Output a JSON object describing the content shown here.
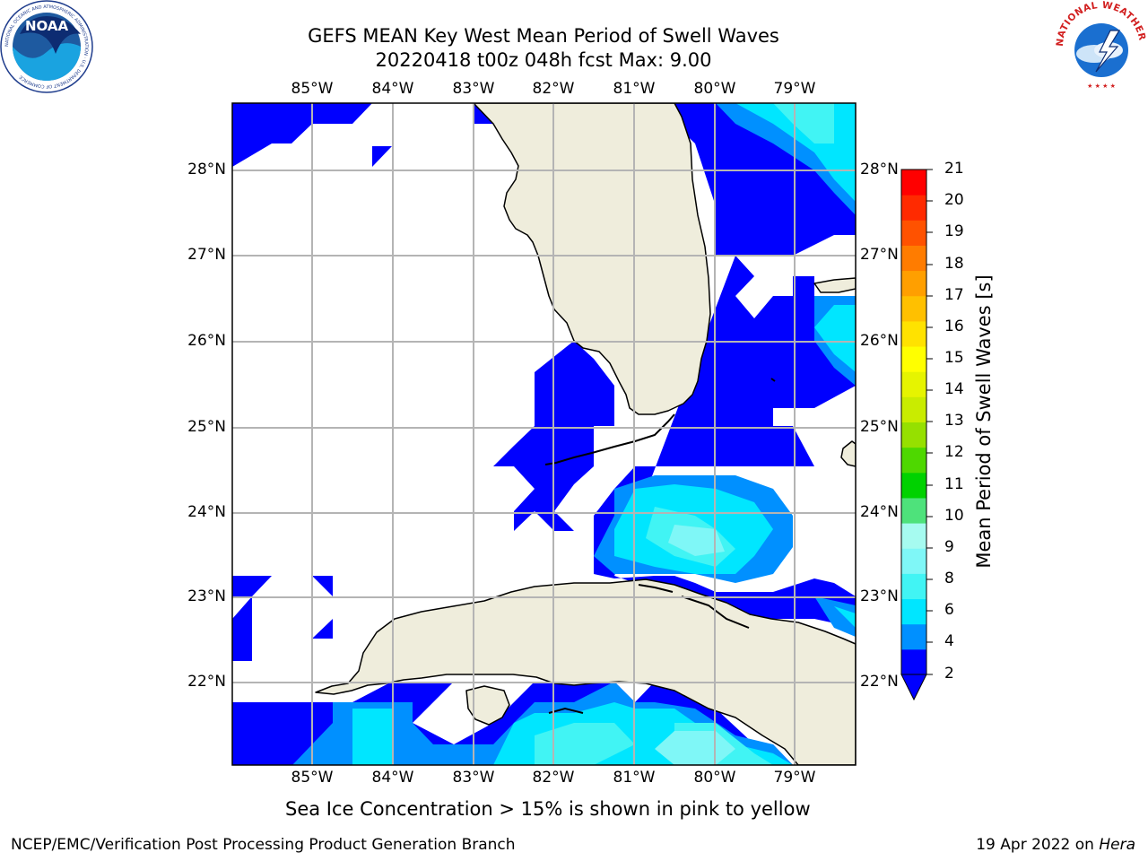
{
  "title": {
    "line1": "GEFS MEAN Key West Mean Period of Swell Waves",
    "line2": "20220418 t00z 048h fcst   Max: 9.00"
  },
  "map": {
    "longitude_labels": [
      "85°W",
      "84°W",
      "83°W",
      "82°W",
      "81°W",
      "80°W",
      "79°W"
    ],
    "latitude_labels": [
      "28°N",
      "27°N",
      "26°N",
      "25°N",
      "24°N",
      "23°N",
      "22°N"
    ],
    "land_color": "#efeddc",
    "gridline_color": "#b4b4b4"
  },
  "colorbar": {
    "label": "Mean Period of Swell Waves [s]",
    "ticks": [
      "21",
      "20",
      "19",
      "18",
      "17",
      "16",
      "15",
      "14",
      "13",
      "12",
      "11",
      "10",
      "9",
      "8",
      "6",
      "4",
      "2"
    ],
    "colors": [
      "#0000ff",
      "#0090ff",
      "#00e6ff",
      "#41f4f4",
      "#7ff7f7",
      "#a6fbf0",
      "#4ee27b",
      "#00d200",
      "#4ed800",
      "#96e000",
      "#c9ec00",
      "#e6f400",
      "#ffff00",
      "#ffe200",
      "#ffc000",
      "#ff9f00",
      "#ff7c00",
      "#ff5200",
      "#ff2a00",
      "#ff0000"
    ]
  },
  "logos": {
    "noaa_text": "NOAA",
    "noaa_ring_text": "NATIONAL OCEANIC AND ATMOSPHERIC ADMINISTRATION · U.S. DEPARTMENT OF COMMERCE",
    "nws_ring_text": "NATIONAL WEATHER SERVICE"
  },
  "footer": {
    "note": "Sea Ice Concentration > 15% is shown in pink to yellow",
    "left": "NCEP/EMC/Verification Post Processing Product Generation Branch",
    "date": "19 Apr 2022 on ",
    "host": "Hera"
  }
}
